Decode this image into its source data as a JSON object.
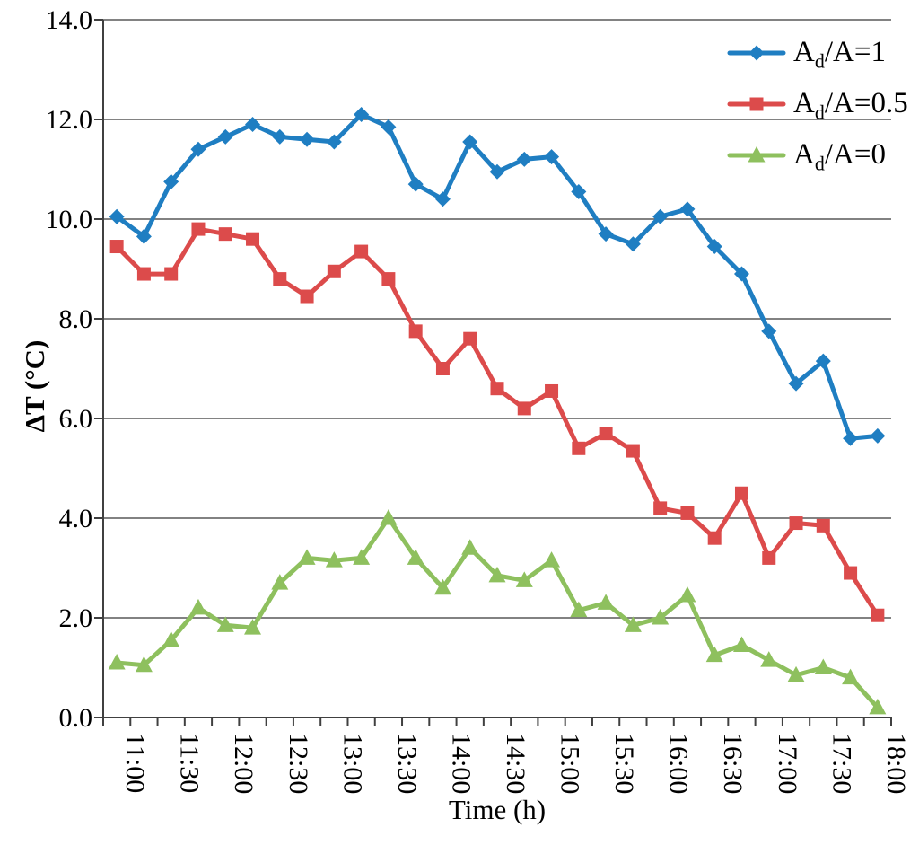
{
  "chart_data": {
    "type": "line",
    "title": "",
    "xlabel": "Time (h)",
    "ylabel": "ΔT (°C)",
    "ylim": [
      0,
      14
    ],
    "ytick_step": 2,
    "ytick_labels": [
      "0.0",
      "2.0",
      "4.0",
      "6.0",
      "8.0",
      "10.0",
      "12.0",
      "14.0"
    ],
    "xtick_labels_shown": [
      "11:00",
      "11:30",
      "12:00",
      "12:30",
      "13:00",
      "13:30",
      "14:00",
      "14:30",
      "15:00",
      "15:30",
      "16:00",
      "16:30",
      "17:00",
      "17:30",
      "18:00"
    ],
    "xtick_label_every": 2,
    "grid": true,
    "legend_position": "top-right",
    "categories": [
      "11:00",
      "11:15",
      "11:30",
      "11:45",
      "12:00",
      "12:15",
      "12:30",
      "12:45",
      "13:00",
      "13:15",
      "13:30",
      "13:45",
      "14:00",
      "14:15",
      "14:30",
      "14:45",
      "15:00",
      "15:15",
      "15:30",
      "15:45",
      "16:00",
      "16:15",
      "16:30",
      "16:45",
      "17:00",
      "17:15",
      "17:30",
      "17:45",
      "18:00"
    ],
    "series": [
      {
        "name": "Ad/A=1",
        "label": {
          "pre": "A",
          "sub": "d",
          "post": "/A=1"
        },
        "marker": "diamond",
        "color": "#1f7ec2",
        "values": [
          10.05,
          9.65,
          10.75,
          11.4,
          11.65,
          11.9,
          11.65,
          11.6,
          11.55,
          12.1,
          11.85,
          10.7,
          10.4,
          11.55,
          10.95,
          11.2,
          11.25,
          10.55,
          9.7,
          9.5,
          10.05,
          10.2,
          9.45,
          8.9,
          7.75,
          6.7,
          7.15,
          5.6,
          5.65
        ]
      },
      {
        "name": "Ad/A=0.5",
        "label": {
          "pre": "A",
          "sub": "d",
          "post": "/A=0.5"
        },
        "marker": "square",
        "color": "#dc4b4b",
        "values": [
          9.45,
          8.9,
          8.9,
          9.8,
          9.7,
          9.6,
          8.8,
          8.45,
          8.95,
          9.35,
          8.8,
          7.75,
          7.0,
          7.6,
          6.6,
          6.2,
          6.55,
          5.4,
          5.7,
          5.35,
          4.2,
          4.1,
          3.6,
          4.5,
          3.2,
          3.9,
          3.85,
          2.9,
          2.05
        ]
      },
      {
        "name": "Ad/A=0",
        "label": {
          "pre": "A",
          "sub": "d",
          "post": "/A=0"
        },
        "marker": "triangle",
        "color": "#8ec05e",
        "values": [
          1.1,
          1.05,
          1.55,
          2.2,
          1.85,
          1.8,
          2.7,
          3.2,
          3.15,
          3.2,
          4.0,
          3.2,
          2.6,
          3.4,
          2.85,
          2.75,
          3.15,
          2.15,
          2.3,
          1.85,
          2.0,
          2.45,
          1.25,
          1.45,
          1.15,
          0.85,
          1.0,
          0.8,
          0.2
        ]
      }
    ],
    "colors": {
      "background": "#ffffff",
      "axis": "#404040",
      "grid": "#595959",
      "text": "#000000"
    }
  }
}
